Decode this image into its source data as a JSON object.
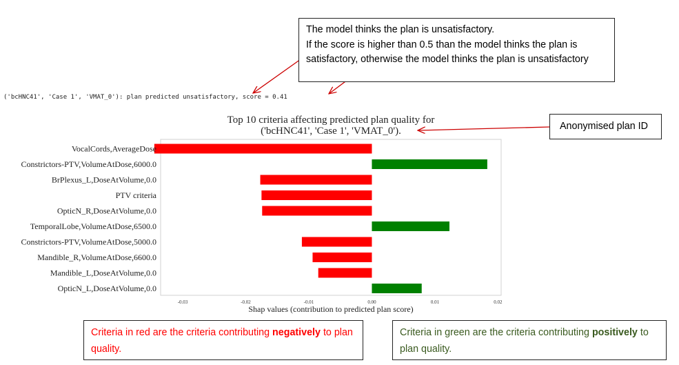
{
  "callouts": {
    "note_lines": [
      "The model thinks the plan is unsatisfactory.",
      "If the score is higher than 0.5 than the model thinks the plan is",
      "satisfactory, otherwise the model thinks the plan is unsatisfactory"
    ],
    "anonymised_label": "Anonymised plan ID",
    "red_prefix": "Criteria in red are the criteria contributing ",
    "red_emphasis": "negatively",
    "red_suffix": " to plan quality.",
    "green_prefix": "Criteria in green are the criteria contributing ",
    "green_emphasis": "positively",
    "green_suffix": " to plan quality."
  },
  "console_output": "('bcHNC41', 'Case 1', 'VMAT_0'): plan predicted unsatisfactory, score = 0.41",
  "colors": {
    "negative": "#ff0000",
    "positive": "#008000",
    "arrow": "#cc0000",
    "green_text": "#3a5a1f"
  },
  "chart_data": {
    "type": "bar",
    "orientation": "horizontal",
    "title_line1": "Top 10 criteria affecting predicted plan quality for",
    "title_line2": "('bcHNC41', 'Case 1', 'VMAT_0').",
    "xlabel": "Shap values (contribution to predicted plan score)",
    "ylabel": "",
    "xlim": [
      -0.0335,
      0.0205
    ],
    "xticks": [
      "-0.03",
      "-0.02",
      "-0.01",
      "0.00",
      "0.01",
      "0.02"
    ],
    "xtick_values": [
      -0.03,
      -0.02,
      -0.01,
      0.0,
      0.01,
      0.02
    ],
    "categories": [
      "VocalCords,AverageDose",
      "Constrictors-PTV,VolumeAtDose,6000.0",
      "BrPlexus_L,DoseAtVolume,0.0",
      "PTV criteria",
      "OpticN_R,DoseAtVolume,0.0",
      "TemporalLobe,VolumeAtDose,6500.0",
      "Constrictors-PTV,VolumeAtDose,5000.0",
      "Mandible_R,VolumeAtDose,6600.0",
      "Mandible_L,DoseAtVolume,0.0",
      "OpticN_L,DoseAtVolume,0.0"
    ],
    "values": [
      -0.0345,
      0.0183,
      -0.0177,
      -0.0175,
      -0.0174,
      0.0123,
      -0.0111,
      -0.0094,
      -0.0085,
      0.0079
    ],
    "grid": false,
    "legend": "none"
  }
}
